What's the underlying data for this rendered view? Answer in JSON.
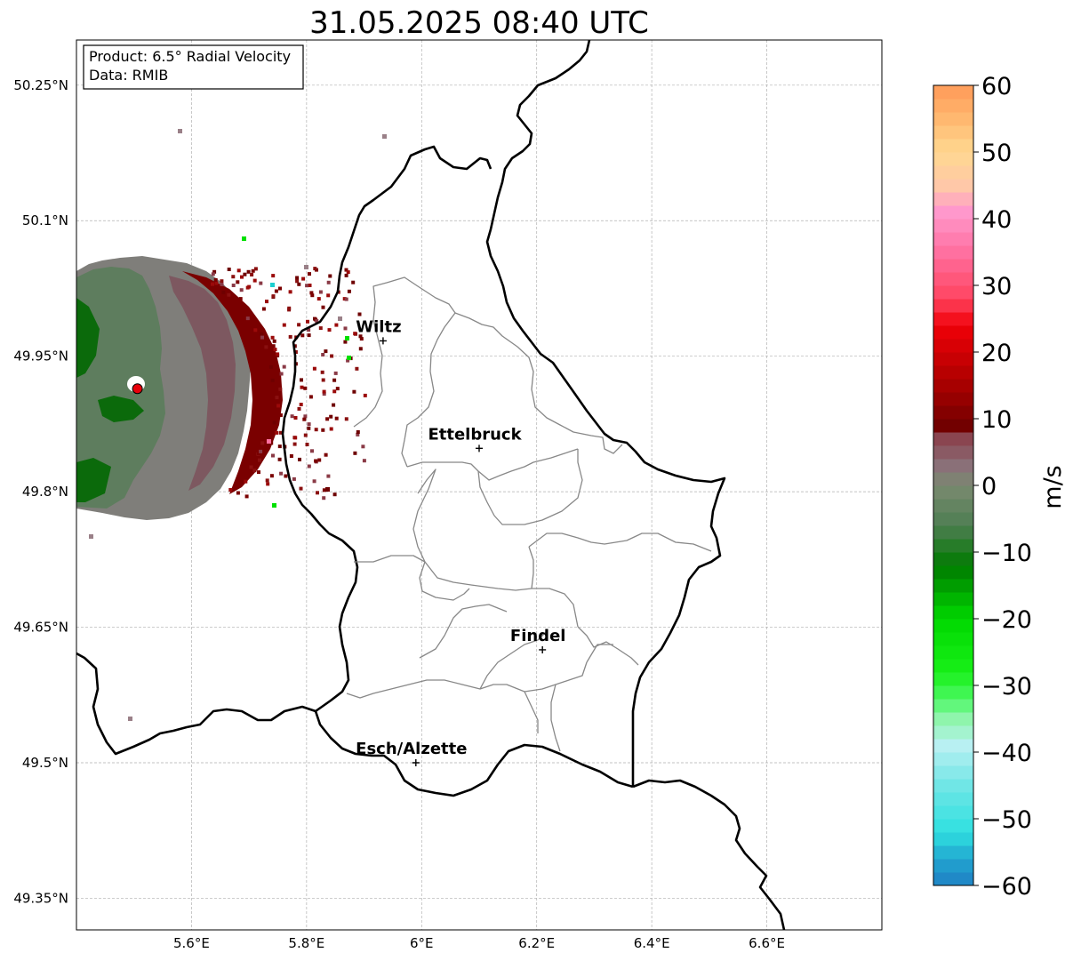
{
  "title": "31.05.2025 08:40 UTC",
  "info_box": {
    "line1": "Product: 6.5° Radial Velocity",
    "line2": "Data: RMIB"
  },
  "map": {
    "lon_range": [
      5.4,
      6.8
    ],
    "lat_range": [
      49.315,
      50.3
    ],
    "x_ticks": [
      {
        "v": 5.6,
        "label": "5.6°E"
      },
      {
        "v": 5.8,
        "label": "5.8°E"
      },
      {
        "v": 6.0,
        "label": "6°E"
      },
      {
        "v": 6.2,
        "label": "6.2°E"
      },
      {
        "v": 6.4,
        "label": "6.4°E"
      },
      {
        "v": 6.6,
        "label": "6.6°E"
      }
    ],
    "y_ticks": [
      {
        "v": 50.25,
        "label": "50.25°N"
      },
      {
        "v": 50.1,
        "label": "50.1°N"
      },
      {
        "v": 49.95,
        "label": "49.95°N"
      },
      {
        "v": 49.8,
        "label": "49.8°N"
      },
      {
        "v": 49.65,
        "label": "49.65°N"
      },
      {
        "v": 49.5,
        "label": "49.5°N"
      },
      {
        "v": 49.35,
        "label": "49.35°N"
      }
    ],
    "gridlines": true,
    "cities": [
      {
        "name": "Wiltz",
        "lon": 5.933,
        "lat": 49.967
      },
      {
        "name": "Ettelbruck",
        "lon": 6.1,
        "lat": 49.848
      },
      {
        "name": "Findel",
        "lon": 6.21,
        "lat": 49.625
      },
      {
        "name": "Esch/Alzette",
        "lon": 5.99,
        "lat": 49.5
      }
    ],
    "radar_site": {
      "lon": 5.506,
      "lat": 49.914,
      "color": "#e8000b"
    }
  },
  "colorbar": {
    "label": "m/s",
    "min": -60,
    "max": 60,
    "ticks": [
      {
        "v": 60,
        "label": "60"
      },
      {
        "v": 50,
        "label": "50"
      },
      {
        "v": 40,
        "label": "40"
      },
      {
        "v": 30,
        "label": "30"
      },
      {
        "v": 20,
        "label": "20"
      },
      {
        "v": 10,
        "label": "10"
      },
      {
        "v": 0,
        "label": "0"
      },
      {
        "v": -10,
        "label": "−10"
      },
      {
        "v": -20,
        "label": "−20"
      },
      {
        "v": -30,
        "label": "−30"
      },
      {
        "v": -40,
        "label": "−40"
      },
      {
        "v": -50,
        "label": "−50"
      },
      {
        "v": -60,
        "label": "−60"
      }
    ],
    "stops": [
      {
        "v": -60,
        "color": "#1f7fc4"
      },
      {
        "v": -56,
        "color": "#22a6d0"
      },
      {
        "v": -52,
        "color": "#2fe0e0"
      },
      {
        "v": -45,
        "color": "#70e6e6"
      },
      {
        "v": -39,
        "color": "#b8f0f2"
      },
      {
        "v": -35,
        "color": "#8ff5ac"
      },
      {
        "v": -32,
        "color": "#4cf864"
      },
      {
        "v": -28,
        "color": "#18f018"
      },
      {
        "v": -20,
        "color": "#00d800"
      },
      {
        "v": -12,
        "color": "#007a00"
      },
      {
        "v": -6,
        "color": "#4e7e52"
      },
      {
        "v": 0,
        "color": "#7a8a70"
      },
      {
        "v": 3,
        "color": "#8a7078"
      },
      {
        "v": 8,
        "color": "#8a3a46"
      },
      {
        "v": 8.5,
        "color": "#6e0000"
      },
      {
        "v": 16,
        "color": "#b00000"
      },
      {
        "v": 24,
        "color": "#f00008"
      },
      {
        "v": 28,
        "color": "#ff4460"
      },
      {
        "v": 35,
        "color": "#ff70a0"
      },
      {
        "v": 41,
        "color": "#ff98cc"
      },
      {
        "v": 45,
        "color": "#ffc8a8"
      },
      {
        "v": 50,
        "color": "#ffd890"
      },
      {
        "v": 55,
        "color": "#ffb870"
      },
      {
        "v": 60,
        "color": "#ff9a58"
      }
    ]
  }
}
